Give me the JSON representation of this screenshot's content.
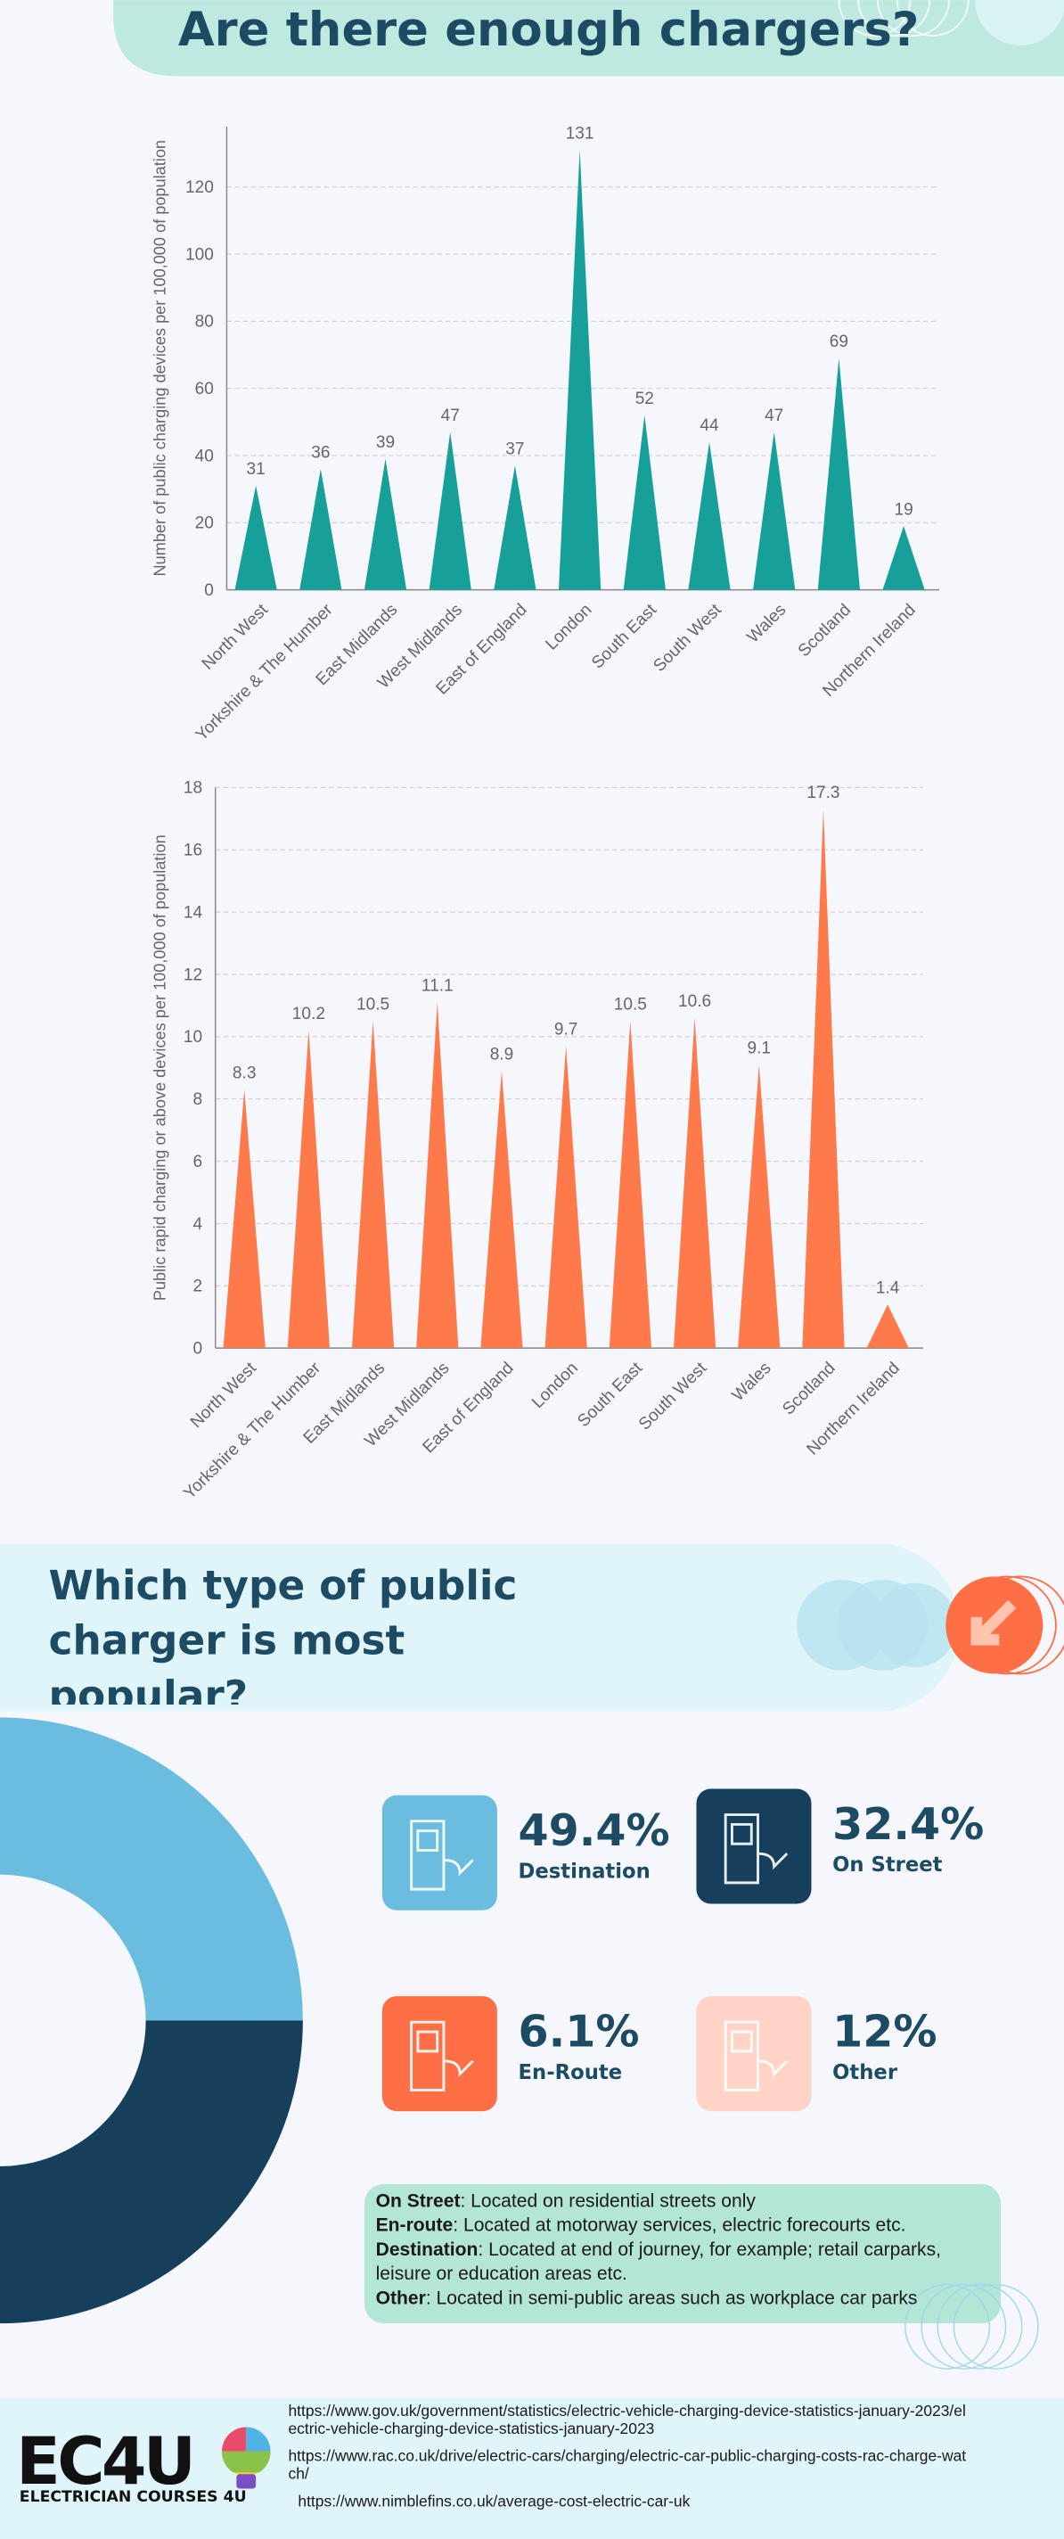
{
  "header": {
    "title": "Are there enough chargers?"
  },
  "section2": {
    "title": "Which type of public charger is most popular?"
  },
  "chart_data": [
    {
      "type": "bar",
      "ylabel": "Number of public charging devices per 100,000 of population",
      "categories": [
        "North West",
        "Yorkshire & The Humber",
        "East Midlands",
        "West Midlands",
        "East of England",
        "London",
        "South East",
        "South West",
        "Wales",
        "Scotland",
        "Northern Ireland"
      ],
      "values": [
        31,
        36,
        39,
        47,
        37,
        131,
        52,
        44,
        47,
        69,
        19
      ],
      "color": "#17a09a",
      "ylim": [
        0,
        138
      ],
      "yticks": [
        0,
        20,
        40,
        60,
        80,
        100,
        120
      ],
      "grid": true
    },
    {
      "type": "bar",
      "ylabel": "Public rapid charging or above devices per 100,000 of population",
      "categories": [
        "North West",
        "Yorkshire & The Humber",
        "East Midlands",
        "West Midlands",
        "East of England",
        "London",
        "South East",
        "South West",
        "Wales",
        "Scotland",
        "Northern Ireland"
      ],
      "values": [
        8.3,
        10.2,
        10.5,
        11.1,
        8.9,
        9.7,
        10.5,
        10.6,
        9.1,
        17.3,
        1.4
      ],
      "color": "#ff7a4a",
      "ylim": [
        0,
        18
      ],
      "yticks": [
        0,
        2,
        4,
        6,
        8,
        10,
        12,
        14,
        16,
        18
      ],
      "grid": true
    },
    {
      "type": "donut",
      "categories": [
        "Destination",
        "On Street",
        "En-Route",
        "Other"
      ],
      "values": [
        49.4,
        32.4,
        6.1,
        12
      ],
      "value_labels": [
        "49.4%",
        "32.4%",
        "6.1%",
        "12%"
      ],
      "colors": [
        "#6bbde0",
        "#163f5c",
        "#ff6f45",
        "#ffd3c6"
      ]
    }
  ],
  "definitions": [
    {
      "term": "On Street",
      "text": ": Located on residential streets only"
    },
    {
      "term": "En-route",
      "text": ": Located at motorway services, electric forecourts etc."
    },
    {
      "term": "Destination",
      "text": ": Located at end of journey, for example; retail carparks, leisure or education areas etc."
    },
    {
      "term": "Other",
      "text": ": Located in semi-public areas such as workplace car parks"
    }
  ],
  "footer": {
    "logo": "EC4U",
    "logo_subtitle": "ELECTRICIAN COURSES 4U",
    "sources": [
      "https://www.gov.uk/government/statistics/electric-vehicle-charging-device-statistics-january-2023/electric-vehicle-charging-device-statistics-january-2023",
      "https://www.rac.co.uk/drive/electric-cars/charging/electric-car-public-charging-costs-rac-charge-watch/",
      "https://www.nimblefins.co.uk/average-cost-electric-car-uk"
    ]
  }
}
